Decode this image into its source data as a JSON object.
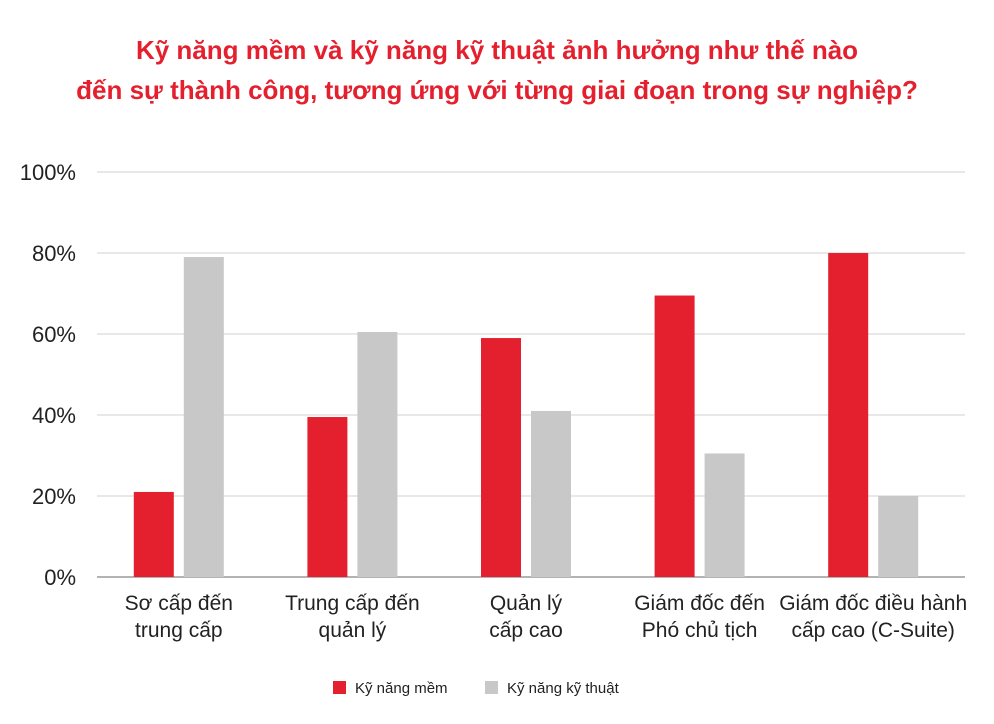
{
  "chart_data": {
    "type": "bar",
    "title": [
      "Kỹ năng mềm và kỹ năng kỹ thuật ảnh hưởng như thế nào",
      "đến sự thành công, tương ứng với từng giai đoạn trong sự nghiệp?"
    ],
    "categories": [
      [
        "Sơ cấp đến",
        "trung cấp"
      ],
      [
        "Trung cấp đến",
        "quản lý"
      ],
      [
        "Quản lý",
        "cấp cao"
      ],
      [
        "Giám đốc đến",
        "Phó chủ tịch"
      ],
      [
        "Giám đốc điều hành",
        "cấp cao (C-Suite)"
      ]
    ],
    "series": [
      {
        "name": "Kỹ năng mềm",
        "color": "#e5202e",
        "values": [
          21,
          39.5,
          59,
          69.5,
          80
        ]
      },
      {
        "name": "Kỹ năng kỹ thuật",
        "color": "#c8c8c8",
        "values": [
          79,
          60.5,
          41,
          30.5,
          20
        ]
      }
    ],
    "yticks": [
      "0%",
      "20%",
      "40%",
      "60%",
      "80%",
      "100%"
    ],
    "ylim": [
      0,
      100
    ],
    "grid": true,
    "legend": "bottom-center"
  }
}
